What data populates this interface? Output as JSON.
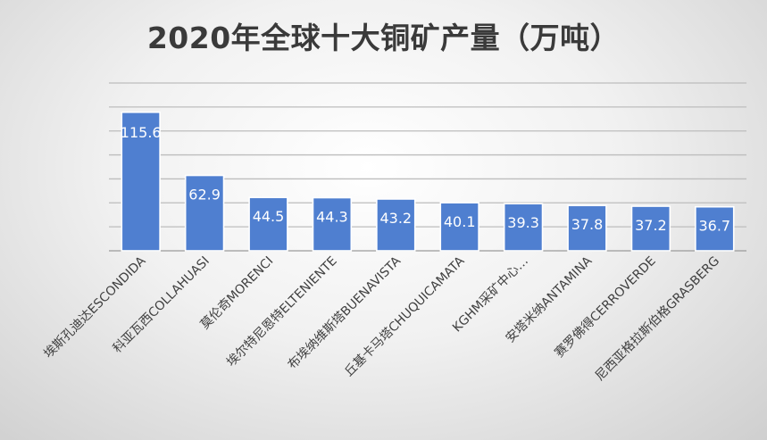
{
  "chart_data": {
    "type": "bar",
    "title": "2020年全球十大铜矿产量（万吨）",
    "categories": [
      "埃斯孔迪达ESCONDIDA",
      "科亚瓦西COLLAHUASI",
      "莫伦奇MORENCI",
      "埃尔特尼恩特ELTENIENTE",
      "布埃纳维斯塔BUENAVISTA",
      "丘基卡马塔CHUQUICAMATA",
      "KGHM采矿中心…",
      "安塔米纳ANTAMINA",
      "赛罗佛得CERROVERDE",
      "尼西亚格拉斯伯格GRASBERG"
    ],
    "values": [
      115.6,
      62.9,
      44.5,
      44.3,
      43.2,
      40.1,
      39.3,
      37.8,
      37.2,
      36.7
    ],
    "data_labels": [
      "115.6",
      "62.9",
      "44.5",
      "44.3",
      "43.2",
      "40.1",
      "39.3",
      "37.8",
      "37.2",
      "36.7"
    ],
    "xlabel": "",
    "ylabel": "",
    "ylim": [
      0,
      140
    ],
    "y_grid_step": 20,
    "grid": true,
    "legend": "none",
    "bar_color": "#4f7fd0"
  }
}
